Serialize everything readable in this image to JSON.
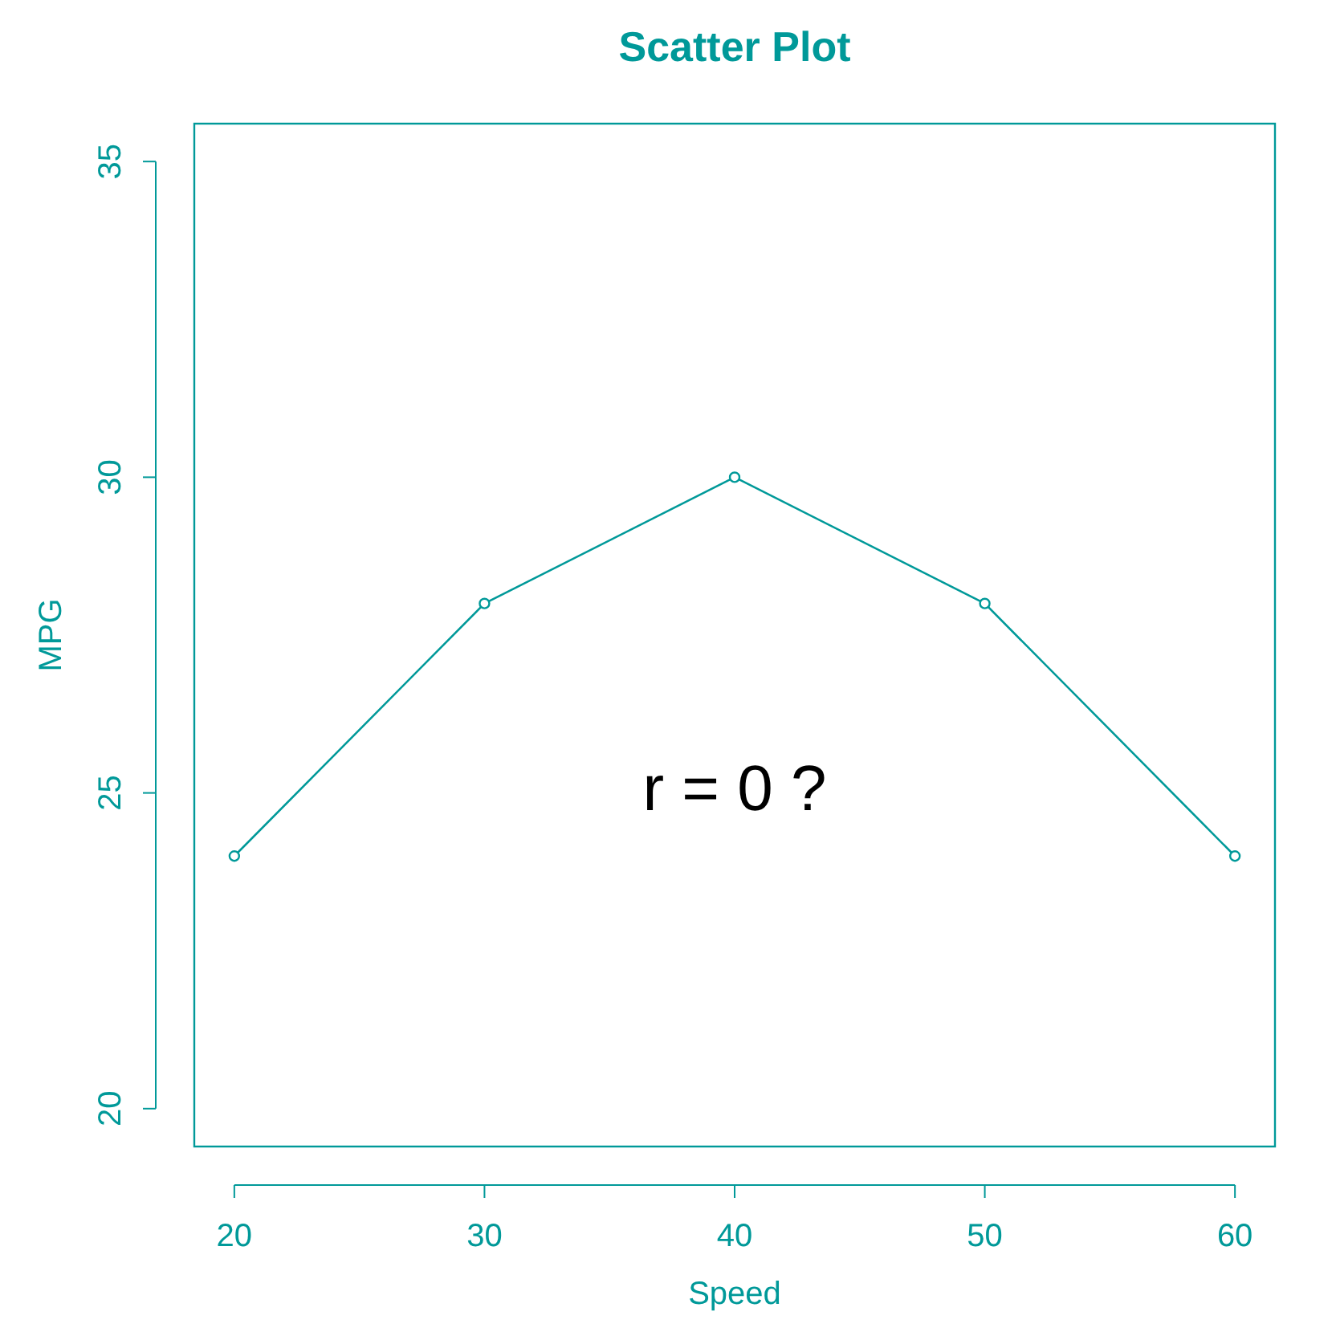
{
  "chart_data": {
    "type": "line",
    "title": "Scatter Plot",
    "xlabel": "Speed",
    "ylabel": "MPG",
    "x": [
      20,
      30,
      40,
      50,
      60
    ],
    "series": [
      {
        "color": "#009999",
        "values": [
          24,
          28,
          30,
          28,
          24
        ]
      }
    ],
    "marker": "circle",
    "xlim": [
      18.4,
      61.6
    ],
    "ylim": [
      19.4,
      35.6
    ],
    "xticks": [
      20,
      30,
      40,
      50,
      60
    ],
    "yticks": [
      20,
      25,
      30,
      35
    ],
    "annotations": [
      "r = 0 ?"
    ],
    "grid": false
  }
}
